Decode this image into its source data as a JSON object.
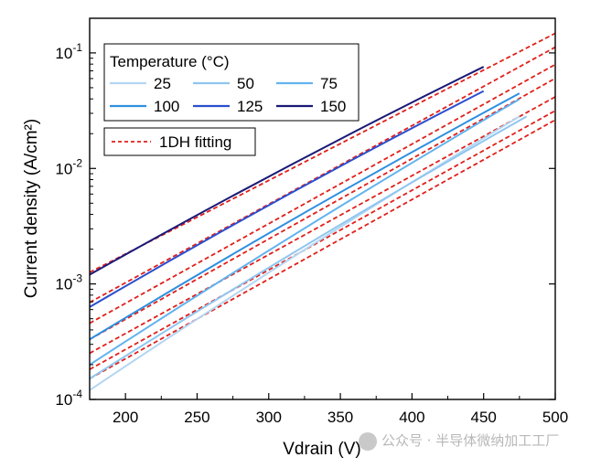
{
  "chart_data": {
    "type": "line",
    "xlabel": "Vdrain (V)",
    "ylabel": "Current density (A/cm²)",
    "yscale": "log",
    "xlim": [
      175,
      500
    ],
    "ylim_exponent": [
      -4,
      -0.7
    ],
    "x_ticks": [
      200,
      250,
      300,
      350,
      400,
      450,
      500
    ],
    "y_ticks": [
      {
        "base": "10",
        "exp": "-4",
        "value": 0.0001
      },
      {
        "base": "10",
        "exp": "-3",
        "value": 0.001
      },
      {
        "base": "10",
        "exp": "-2",
        "value": 0.01
      },
      {
        "base": "10",
        "exp": "-1",
        "value": 0.1
      }
    ],
    "legend": {
      "title": "Temperature (°C)",
      "position": "top-left",
      "fit_label": "1DH fitting"
    },
    "series": [
      {
        "name": "25",
        "color": "#b3d6f2",
        "x": [
          175,
          475
        ],
        "log10_y": [
          -3.92,
          -1.55
        ]
      },
      {
        "name": "50",
        "color": "#8fc6f0",
        "x": [
          175,
          480
        ],
        "log10_y": [
          -3.82,
          -1.55
        ]
      },
      {
        "name": "75",
        "color": "#62b3ee",
        "x": [
          175,
          475
        ],
        "log10_y": [
          -3.7,
          -1.4
        ]
      },
      {
        "name": "100",
        "color": "#2e8fe0",
        "x": [
          175,
          475
        ],
        "log10_y": [
          -3.48,
          -1.35
        ]
      },
      {
        "name": "125",
        "color": "#2a4fcf",
        "x": [
          175,
          450
        ],
        "log10_y": [
          -3.2,
          -1.33
        ]
      },
      {
        "name": "150",
        "color": "#1a1a78",
        "x": [
          175,
          450
        ],
        "log10_y": [
          -2.92,
          -1.12
        ]
      }
    ],
    "fits": [
      {
        "name": "1DH fitting",
        "color": "#e0201b",
        "x": [
          175,
          500
        ],
        "log10_y": [
          -3.82,
          -1.58
        ]
      },
      {
        "name": "1DH fitting",
        "color": "#e0201b",
        "x": [
          175,
          500
        ],
        "log10_y": [
          -3.74,
          -1.5
        ]
      },
      {
        "name": "1DH fitting",
        "color": "#e0201b",
        "x": [
          175,
          500
        ],
        "log10_y": [
          -3.6,
          -1.38
        ]
      },
      {
        "name": "1DH fitting",
        "color": "#e0201b",
        "x": [
          175,
          500
        ],
        "log10_y": [
          -3.48,
          -1.22
        ]
      },
      {
        "name": "1DH fitting",
        "color": "#e0201b",
        "x": [
          175,
          500
        ],
        "log10_y": [
          -3.34,
          -1.1
        ]
      },
      {
        "name": "1DH fitting",
        "color": "#e0201b",
        "x": [
          175,
          500
        ],
        "log10_y": [
          -3.16,
          -0.95
        ]
      },
      {
        "name": "1DH fitting",
        "color": "#e0201b",
        "x": [
          175,
          500
        ],
        "log10_y": [
          -2.9,
          -0.83
        ]
      }
    ]
  },
  "watermark": {
    "text": "公众号 · 半导体微纳加工工厂"
  }
}
